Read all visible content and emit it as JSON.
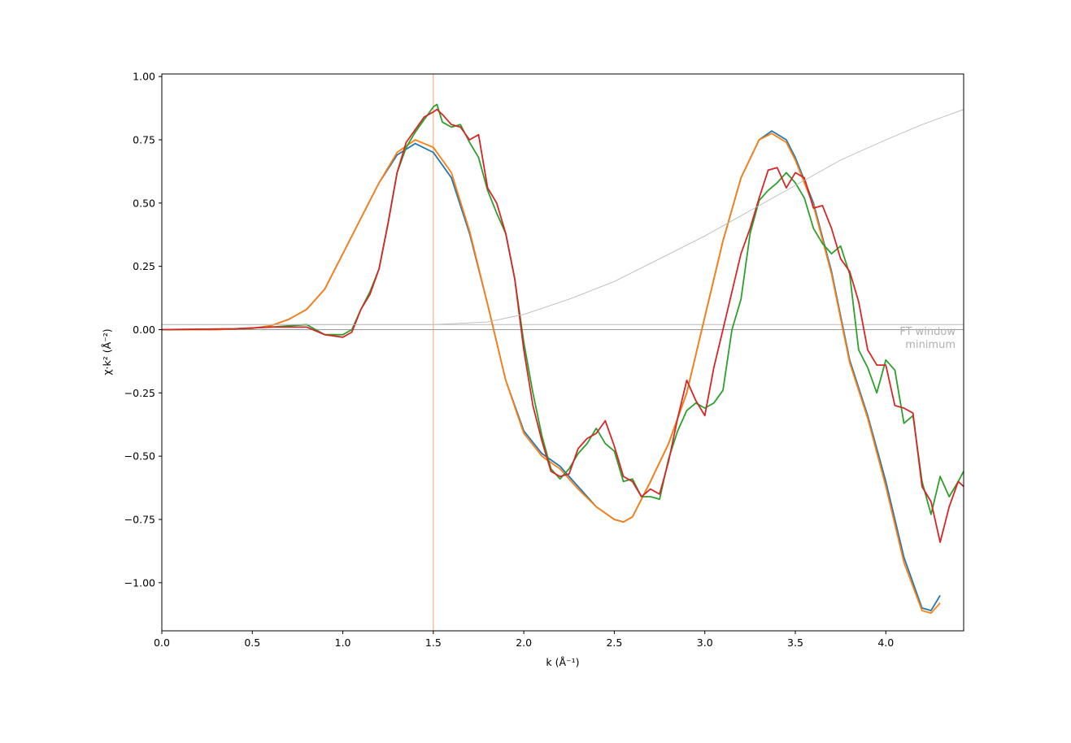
{
  "chart_data": {
    "type": "line",
    "xlabel": "k (Å⁻¹)",
    "ylabel": "χ·k² (Å⁻²)",
    "xlim": [
      0,
      4.43
    ],
    "ylim": [
      -1.19,
      1.01
    ],
    "x_ticks": [
      0.0,
      0.5,
      1.0,
      1.5,
      2.0,
      2.5,
      3.0,
      3.5,
      4.0
    ],
    "x_tick_labels": [
      "0.0",
      "0.5",
      "1.0",
      "1.5",
      "2.0",
      "2.5",
      "3.0",
      "3.5",
      "4.0"
    ],
    "y_ticks": [
      -1.0,
      -0.75,
      -0.5,
      -0.25,
      0.0,
      0.25,
      0.5,
      0.75,
      1.0
    ],
    "y_tick_labels": [
      "−1.00",
      "−0.75",
      "−0.50",
      "−0.25",
      "0.00",
      "0.25",
      "0.50",
      "0.75",
      "1.00"
    ],
    "grid": false,
    "annotation": {
      "lines": [
        "FT window",
        "minimum"
      ],
      "color": "#b8b8b8"
    },
    "reference_lines": [
      {
        "kind": "horizontal",
        "y": 0.0,
        "color": "#999999"
      },
      {
        "kind": "horizontal",
        "y": 0.02,
        "color": "#bbbbbb"
      },
      {
        "kind": "vertical",
        "x": 1.5,
        "color": "#f0a070"
      }
    ],
    "series": [
      {
        "color": "#1f77b4",
        "x": [
          0.0,
          0.3,
          0.5,
          0.6,
          0.7,
          0.8,
          0.9,
          1.0,
          1.1,
          1.2,
          1.3,
          1.4,
          1.5,
          1.6,
          1.7,
          1.8,
          1.9,
          2.0,
          2.1,
          2.2,
          2.3,
          2.4,
          2.5,
          2.55,
          2.6,
          2.7,
          2.8,
          2.9,
          3.0,
          3.1,
          3.2,
          3.3,
          3.37,
          3.45,
          3.5,
          3.6,
          3.7,
          3.8,
          3.9,
          4.0,
          4.1,
          4.2,
          4.25,
          4.3
        ],
        "y": [
          0.0,
          0.0,
          0.005,
          0.015,
          0.04,
          0.08,
          0.16,
          0.3,
          0.44,
          0.58,
          0.69,
          0.735,
          0.7,
          0.6,
          0.38,
          0.1,
          -0.2,
          -0.4,
          -0.49,
          -0.54,
          -0.62,
          -0.7,
          -0.75,
          -0.76,
          -0.74,
          -0.6,
          -0.45,
          -0.25,
          0.05,
          0.35,
          0.6,
          0.75,
          0.785,
          0.75,
          0.68,
          0.5,
          0.23,
          -0.12,
          -0.34,
          -0.6,
          -0.9,
          -1.1,
          -1.11,
          -1.05
        ]
      },
      {
        "color": "#ff7f0e",
        "x": [
          0.0,
          0.3,
          0.5,
          0.6,
          0.7,
          0.8,
          0.9,
          1.0,
          1.1,
          1.2,
          1.3,
          1.4,
          1.5,
          1.6,
          1.7,
          1.8,
          1.9,
          2.0,
          2.1,
          2.2,
          2.3,
          2.4,
          2.5,
          2.55,
          2.6,
          2.7,
          2.8,
          2.9,
          3.0,
          3.1,
          3.2,
          3.3,
          3.37,
          3.45,
          3.5,
          3.6,
          3.7,
          3.8,
          3.9,
          4.0,
          4.1,
          4.2,
          4.25,
          4.3
        ],
        "y": [
          0.0,
          0.0,
          0.005,
          0.015,
          0.04,
          0.08,
          0.16,
          0.3,
          0.44,
          0.58,
          0.7,
          0.75,
          0.72,
          0.62,
          0.39,
          0.1,
          -0.2,
          -0.41,
          -0.5,
          -0.55,
          -0.63,
          -0.7,
          -0.75,
          -0.76,
          -0.74,
          -0.6,
          -0.45,
          -0.25,
          0.05,
          0.35,
          0.6,
          0.75,
          0.775,
          0.74,
          0.67,
          0.49,
          0.22,
          -0.13,
          -0.35,
          -0.62,
          -0.92,
          -1.11,
          -1.12,
          -1.08
        ]
      },
      {
        "color": "#2ca02c",
        "x": [
          0.0,
          0.4,
          0.6,
          0.8,
          0.9,
          1.0,
          1.05,
          1.1,
          1.15,
          1.2,
          1.25,
          1.3,
          1.35,
          1.4,
          1.45,
          1.5,
          1.52,
          1.55,
          1.6,
          1.65,
          1.7,
          1.75,
          1.8,
          1.85,
          1.9,
          1.95,
          2.0,
          2.05,
          2.1,
          2.15,
          2.2,
          2.25,
          2.3,
          2.35,
          2.4,
          2.45,
          2.5,
          2.55,
          2.6,
          2.65,
          2.7,
          2.75,
          2.8,
          2.85,
          2.9,
          2.95,
          3.0,
          3.05,
          3.1,
          3.15,
          3.2,
          3.25,
          3.3,
          3.35,
          3.4,
          3.45,
          3.5,
          3.55,
          3.6,
          3.65,
          3.7,
          3.75,
          3.8,
          3.85,
          3.9,
          3.95,
          4.0,
          4.05,
          4.1,
          4.15,
          4.2,
          4.25,
          4.3,
          4.35,
          4.4,
          4.43
        ],
        "y": [
          0.0,
          0.003,
          0.01,
          0.02,
          -0.02,
          -0.02,
          0.0,
          0.08,
          0.15,
          0.24,
          0.42,
          0.62,
          0.72,
          0.78,
          0.83,
          0.88,
          0.89,
          0.82,
          0.8,
          0.81,
          0.74,
          0.68,
          0.55,
          0.46,
          0.38,
          0.2,
          -0.05,
          -0.25,
          -0.42,
          -0.55,
          -0.59,
          -0.55,
          -0.49,
          -0.45,
          -0.39,
          -0.45,
          -0.48,
          -0.6,
          -0.59,
          -0.66,
          -0.66,
          -0.67,
          -0.51,
          -0.4,
          -0.32,
          -0.29,
          -0.31,
          -0.29,
          -0.24,
          0.0,
          0.12,
          0.38,
          0.51,
          0.55,
          0.58,
          0.62,
          0.58,
          0.52,
          0.4,
          0.34,
          0.3,
          0.33,
          0.22,
          -0.08,
          -0.15,
          -0.25,
          -0.12,
          -0.16,
          -0.37,
          -0.34,
          -0.6,
          -0.73,
          -0.58,
          -0.66,
          -0.6,
          -0.56
        ]
      },
      {
        "color": "#d62728",
        "x": [
          0.0,
          0.4,
          0.6,
          0.8,
          0.9,
          1.0,
          1.05,
          1.1,
          1.15,
          1.2,
          1.25,
          1.3,
          1.35,
          1.4,
          1.45,
          1.5,
          1.52,
          1.55,
          1.6,
          1.65,
          1.7,
          1.75,
          1.8,
          1.85,
          1.9,
          1.95,
          2.0,
          2.05,
          2.1,
          2.15,
          2.2,
          2.25,
          2.3,
          2.35,
          2.4,
          2.45,
          2.5,
          2.55,
          2.6,
          2.65,
          2.7,
          2.75,
          2.8,
          2.85,
          2.9,
          2.95,
          3.0,
          3.05,
          3.1,
          3.15,
          3.2,
          3.25,
          3.3,
          3.35,
          3.4,
          3.45,
          3.5,
          3.55,
          3.6,
          3.65,
          3.7,
          3.75,
          3.8,
          3.85,
          3.9,
          3.95,
          4.0,
          4.05,
          4.1,
          4.15,
          4.2,
          4.25,
          4.3,
          4.35,
          4.4,
          4.43
        ],
        "y": [
          0.0,
          0.003,
          0.01,
          0.01,
          -0.02,
          -0.03,
          -0.01,
          0.08,
          0.14,
          0.24,
          0.42,
          0.62,
          0.74,
          0.79,
          0.84,
          0.86,
          0.87,
          0.85,
          0.81,
          0.8,
          0.75,
          0.77,
          0.56,
          0.5,
          0.38,
          0.2,
          -0.08,
          -0.3,
          -0.44,
          -0.56,
          -0.58,
          -0.57,
          -0.47,
          -0.43,
          -0.41,
          -0.36,
          -0.46,
          -0.58,
          -0.6,
          -0.66,
          -0.63,
          -0.65,
          -0.52,
          -0.35,
          -0.2,
          -0.28,
          -0.34,
          -0.15,
          0.0,
          0.15,
          0.3,
          0.4,
          0.52,
          0.63,
          0.64,
          0.56,
          0.62,
          0.6,
          0.48,
          0.49,
          0.4,
          0.28,
          0.23,
          0.11,
          -0.08,
          -0.14,
          -0.14,
          -0.3,
          -0.31,
          -0.33,
          -0.62,
          -0.68,
          -0.84,
          -0.7,
          -0.6,
          -0.62
        ]
      },
      {
        "color": "#bbbbbb",
        "x": [
          0.0,
          1.5,
          1.8,
          2.0,
          2.25,
          2.5,
          2.75,
          3.0,
          3.25,
          3.5,
          3.75,
          4.0,
          4.2,
          4.43
        ],
        "y": [
          0.02,
          0.02,
          0.03,
          0.06,
          0.12,
          0.19,
          0.28,
          0.37,
          0.47,
          0.57,
          0.67,
          0.75,
          0.81,
          0.87
        ]
      }
    ]
  }
}
